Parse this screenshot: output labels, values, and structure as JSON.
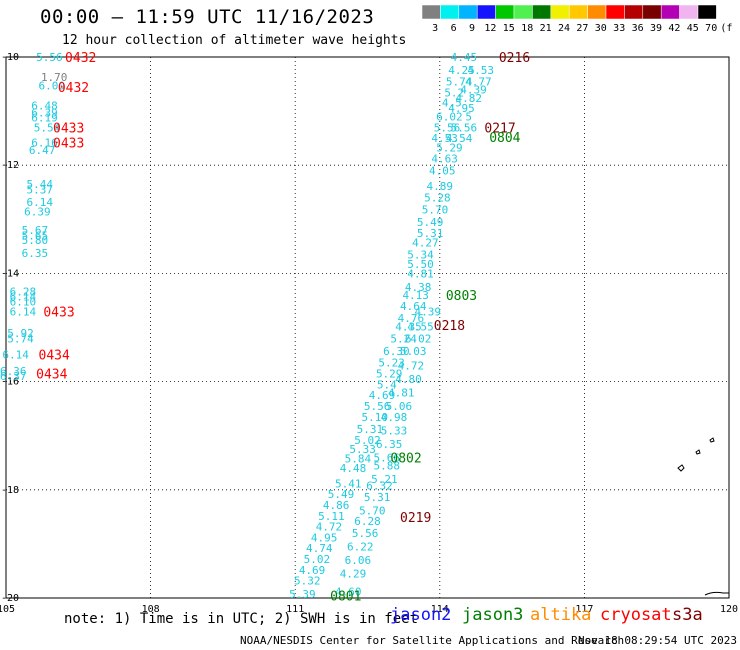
{
  "header": {
    "title": "00:00 – 11:59 UTC 11/16/2023",
    "subtitle": "12 hour collection of altimeter wave heights"
  },
  "legend": {
    "unit": "(ft)",
    "bins": [
      {
        "color": "#808080",
        "label": "3"
      },
      {
        "color": "#00f0f0",
        "label": "6"
      },
      {
        "color": "#00b4ff",
        "label": "9"
      },
      {
        "color": "#1414ff",
        "label": "12"
      },
      {
        "color": "#00c800",
        "label": "15"
      },
      {
        "color": "#50f050",
        "label": "18"
      },
      {
        "color": "#007800",
        "label": "21"
      },
      {
        "color": "#f0f000",
        "label": "24"
      },
      {
        "color": "#ffc800",
        "label": "27"
      },
      {
        "color": "#ff8c00",
        "label": "30"
      },
      {
        "color": "#ff0000",
        "label": "33"
      },
      {
        "color": "#b40000",
        "label": "36"
      },
      {
        "color": "#780000",
        "label": "39"
      },
      {
        "color": "#b400b4",
        "label": "42"
      },
      {
        "color": "#f0b4f0",
        "label": "45"
      },
      {
        "color": "#000000",
        "label": "70"
      }
    ]
  },
  "map": {
    "lon_range": [
      105,
      120
    ],
    "lat_range": [
      -20,
      -10
    ],
    "lon_ticks": [
      "105",
      "108",
      "111",
      "114",
      "117",
      "120"
    ],
    "lat_ticks": [
      "-10",
      "-12",
      "-14",
      "-16",
      "-18",
      "-20"
    ],
    "value_color": "#1ecbe1",
    "time_labels": [
      {
        "text": "0432",
        "lon": 106.55,
        "lat": -10.0,
        "color": "#ff0000"
      },
      {
        "text": "0432",
        "lon": 106.4,
        "lat": -10.55,
        "color": "#ff0000"
      },
      {
        "text": "0433",
        "lon": 106.3,
        "lat": -11.3,
        "color": "#ff0000"
      },
      {
        "text": "0433",
        "lon": 106.3,
        "lat": -11.58,
        "color": "#ff0000"
      },
      {
        "text": "0433",
        "lon": 106.1,
        "lat": -14.7,
        "color": "#ff0000"
      },
      {
        "text": "0434",
        "lon": 106.0,
        "lat": -15.5,
        "color": "#ff0000"
      },
      {
        "text": "0434",
        "lon": 105.95,
        "lat": -15.85,
        "color": "#ff0000"
      },
      {
        "text": "0216",
        "lon": 115.55,
        "lat": -10.0,
        "color": "#800000"
      },
      {
        "text": "0217",
        "lon": 115.25,
        "lat": -11.3,
        "color": "#800000"
      },
      {
        "text": "0804",
        "lon": 115.35,
        "lat": -11.48,
        "color": "#008000"
      },
      {
        "text": "0803",
        "lon": 114.45,
        "lat": -14.4,
        "color": "#008000"
      },
      {
        "text": "0218",
        "lon": 114.2,
        "lat": -14.95,
        "color": "#800000"
      },
      {
        "text": "0802",
        "lon": 113.3,
        "lat": -17.4,
        "color": "#008000"
      },
      {
        "text": "0219",
        "lon": 113.5,
        "lat": -18.5,
        "color": "#800000"
      },
      {
        "text": "0801",
        "lon": 112.05,
        "lat": -19.95,
        "color": "#008000"
      }
    ],
    "values": [
      {
        "text": "5.56",
        "lon": 105.9,
        "lat": -10.0
      },
      {
        "text": "1.70",
        "lon": 106.0,
        "lat": -10.37,
        "color": "#808080"
      },
      {
        "text": "6.00",
        "lon": 105.95,
        "lat": -10.53
      },
      {
        "text": "6.48",
        "lon": 105.8,
        "lat": -10.9
      },
      {
        "text": "6.39",
        "lon": 105.8,
        "lat": -11.03
      },
      {
        "text": "6.19",
        "lon": 105.8,
        "lat": -11.12
      },
      {
        "text": "5.54",
        "lon": 105.85,
        "lat": -11.3
      },
      {
        "text": "6.16",
        "lon": 105.8,
        "lat": -11.58
      },
      {
        "text": "6.47",
        "lon": 105.75,
        "lat": -11.72
      },
      {
        "text": "5.44",
        "lon": 105.7,
        "lat": -12.35
      },
      {
        "text": "5.37",
        "lon": 105.7,
        "lat": -12.45
      },
      {
        "text": "6.14",
        "lon": 105.7,
        "lat": -12.68
      },
      {
        "text": "6.39",
        "lon": 105.65,
        "lat": -12.86
      },
      {
        "text": "5.67",
        "lon": 105.6,
        "lat": -13.2
      },
      {
        "text": "5.65",
        "lon": 105.6,
        "lat": -13.3
      },
      {
        "text": "5.80",
        "lon": 105.6,
        "lat": -13.38
      },
      {
        "text": "6.35",
        "lon": 105.6,
        "lat": -13.62
      },
      {
        "text": "6.28",
        "lon": 105.35,
        "lat": -14.33
      },
      {
        "text": "6.14",
        "lon": 105.35,
        "lat": -14.43
      },
      {
        "text": "6.10",
        "lon": 105.35,
        "lat": -14.52
      },
      {
        "text": "6.14",
        "lon": 105.35,
        "lat": -14.7
      },
      {
        "text": "5.92",
        "lon": 105.3,
        "lat": -15.1
      },
      {
        "text": "5.74",
        "lon": 105.3,
        "lat": -15.2
      },
      {
        "text": "6.14",
        "lon": 105.2,
        "lat": -15.5
      },
      {
        "text": "6.36",
        "lon": 105.15,
        "lat": -15.8
      },
      {
        "text": "6.37",
        "lon": 105.15,
        "lat": -15.9
      },
      {
        "text": "4.45",
        "lon": 114.5,
        "lat": -10.0
      },
      {
        "text": "4.25",
        "lon": 114.45,
        "lat": -10.24
      },
      {
        "text": "4.53",
        "lon": 114.85,
        "lat": -10.24
      },
      {
        "text": "5.74",
        "lon": 114.4,
        "lat": -10.45
      },
      {
        "text": "4.77",
        "lon": 114.8,
        "lat": -10.45
      },
      {
        "text": "5.2",
        "lon": 114.3,
        "lat": -10.66
      },
      {
        "text": "4.39",
        "lon": 114.7,
        "lat": -10.6
      },
      {
        "text": "4.82",
        "lon": 114.6,
        "lat": -10.76
      },
      {
        "text": "4.5",
        "lon": 114.25,
        "lat": -10.84
      },
      {
        "text": "4.95",
        "lon": 114.45,
        "lat": -10.94
      },
      {
        "text": "6.02",
        "lon": 114.2,
        "lat": -11.1
      },
      {
        "text": "5",
        "lon": 114.6,
        "lat": -11.1
      },
      {
        "text": "5.56",
        "lon": 114.15,
        "lat": -11.3
      },
      {
        "text": "5.56",
        "lon": 114.5,
        "lat": -11.3
      },
      {
        "text": "4.53",
        "lon": 114.1,
        "lat": -11.5
      },
      {
        "text": "4.54",
        "lon": 114.4,
        "lat": -11.5
      },
      {
        "text": "5.29",
        "lon": 114.2,
        "lat": -11.67
      },
      {
        "text": "4.63",
        "lon": 114.1,
        "lat": -11.88
      },
      {
        "text": "4.05",
        "lon": 114.05,
        "lat": -12.1
      },
      {
        "text": "4.89",
        "lon": 114.0,
        "lat": -12.38
      },
      {
        "text": "5.28",
        "lon": 113.95,
        "lat": -12.6
      },
      {
        "text": "5.70",
        "lon": 113.9,
        "lat": -12.82
      },
      {
        "text": "5.49",
        "lon": 113.8,
        "lat": -13.05
      },
      {
        "text": "5.31",
        "lon": 113.8,
        "lat": -13.25
      },
      {
        "text": "4.27",
        "lon": 113.7,
        "lat": -13.43
      },
      {
        "text": "5.34",
        "lon": 113.6,
        "lat": -13.65
      },
      {
        "text": "5.50",
        "lon": 113.6,
        "lat": -13.83
      },
      {
        "text": "4.81",
        "lon": 113.6,
        "lat": -14.0
      },
      {
        "text": "4.38",
        "lon": 113.55,
        "lat": -14.25
      },
      {
        "text": "4.13",
        "lon": 113.5,
        "lat": -14.4
      },
      {
        "text": "4.64",
        "lon": 113.45,
        "lat": -14.6
      },
      {
        "text": "4.39",
        "lon": 113.75,
        "lat": -14.7
      },
      {
        "text": "4.76",
        "lon": 113.4,
        "lat": -14.82
      },
      {
        "text": "4.35",
        "lon": 113.35,
        "lat": -14.98
      },
      {
        "text": "4.55",
        "lon": 113.6,
        "lat": -14.98
      },
      {
        "text": "5.24",
        "lon": 113.25,
        "lat": -15.2
      },
      {
        "text": "6.02",
        "lon": 113.55,
        "lat": -15.2
      },
      {
        "text": "6.30",
        "lon": 113.1,
        "lat": -15.43
      },
      {
        "text": "5.03",
        "lon": 113.45,
        "lat": -15.43
      },
      {
        "text": "5.23",
        "lon": 113.0,
        "lat": -15.65
      },
      {
        "text": "4.72",
        "lon": 113.4,
        "lat": -15.7
      },
      {
        "text": "5.29",
        "lon": 112.95,
        "lat": -15.85
      },
      {
        "text": "4.80",
        "lon": 113.35,
        "lat": -15.95
      },
      {
        "text": "5.4",
        "lon": 112.9,
        "lat": -16.05
      },
      {
        "text": "4.69",
        "lon": 112.8,
        "lat": -16.25
      },
      {
        "text": "4.81",
        "lon": 113.2,
        "lat": -16.2
      },
      {
        "text": "5.56",
        "lon": 112.7,
        "lat": -16.45
      },
      {
        "text": "5.06",
        "lon": 113.15,
        "lat": -16.45
      },
      {
        "text": "5.10",
        "lon": 112.65,
        "lat": -16.65
      },
      {
        "text": "4.98",
        "lon": 113.05,
        "lat": -16.65
      },
      {
        "text": "5.31",
        "lon": 112.55,
        "lat": -16.88
      },
      {
        "text": "5.33",
        "lon": 113.05,
        "lat": -16.9
      },
      {
        "text": "5.02",
        "lon": 112.5,
        "lat": -17.08
      },
      {
        "text": "6.35",
        "lon": 112.95,
        "lat": -17.15
      },
      {
        "text": "5.33",
        "lon": 112.4,
        "lat": -17.25
      },
      {
        "text": "5.84",
        "lon": 112.3,
        "lat": -17.42
      },
      {
        "text": "5.66",
        "lon": 112.9,
        "lat": -17.4
      },
      {
        "text": "5.88",
        "lon": 112.9,
        "lat": -17.55
      },
      {
        "text": "4.48",
        "lon": 112.2,
        "lat": -17.6
      },
      {
        "text": "5.21",
        "lon": 112.85,
        "lat": -17.8
      },
      {
        "text": "5.41",
        "lon": 112.1,
        "lat": -17.88
      },
      {
        "text": "6.32",
        "lon": 112.75,
        "lat": -17.92
      },
      {
        "text": "5.49",
        "lon": 111.95,
        "lat": -18.08
      },
      {
        "text": "5.31",
        "lon": 112.7,
        "lat": -18.13
      },
      {
        "text": "4.86",
        "lon": 111.85,
        "lat": -18.28
      },
      {
        "text": "5.70",
        "lon": 112.6,
        "lat": -18.38
      },
      {
        "text": "5.11",
        "lon": 111.75,
        "lat": -18.48
      },
      {
        "text": "6.28",
        "lon": 112.5,
        "lat": -18.58
      },
      {
        "text": "4.72",
        "lon": 111.7,
        "lat": -18.68
      },
      {
        "text": "5.56",
        "lon": 112.45,
        "lat": -18.8
      },
      {
        "text": "4.95",
        "lon": 111.6,
        "lat": -18.88
      },
      {
        "text": "6.22",
        "lon": 112.35,
        "lat": -19.05
      },
      {
        "text": "4.74",
        "lon": 111.5,
        "lat": -19.08
      },
      {
        "text": "5.02",
        "lon": 111.45,
        "lat": -19.28
      },
      {
        "text": "6.06",
        "lon": 112.3,
        "lat": -19.3
      },
      {
        "text": "4.69",
        "lon": 111.35,
        "lat": -19.48
      },
      {
        "text": "4.29",
        "lon": 112.2,
        "lat": -19.55
      },
      {
        "text": "5.32",
        "lon": 111.25,
        "lat": -19.68
      },
      {
        "text": "5.39",
        "lon": 111.15,
        "lat": -19.93
      },
      {
        "text": "4.60",
        "lon": 112.1,
        "lat": -19.88
      }
    ]
  },
  "note": "note: 1) Time is in UTC; 2) SWH is in feet",
  "satellites": [
    {
      "name": "jason2",
      "color": "#1414ff"
    },
    {
      "name": "jason3",
      "color": "#008000"
    },
    {
      "name": "altika",
      "color": "#ff8c00"
    },
    {
      "name": "cryosat",
      "color": "#ff0000"
    },
    {
      "name": "s3a",
      "color": "#800000"
    }
  ],
  "footer": {
    "credit": "NOAA/NESDIS Center for Satellite Applications and Research",
    "timestamp": "Nov 18 08:29:54 UTC 2023"
  }
}
